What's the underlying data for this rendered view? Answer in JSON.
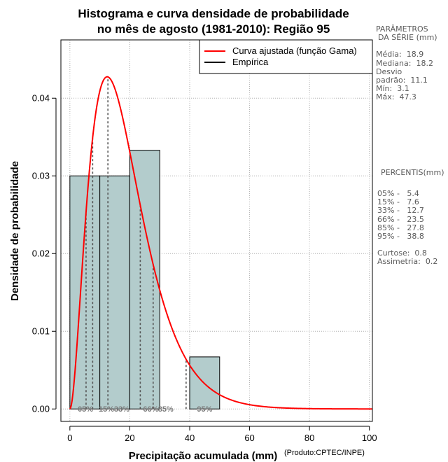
{
  "chart_data": {
    "type": "bar",
    "title_line1": "Histograma e curva densidade de probabilidade",
    "title_line2": "no mês de agosto (1981-2010): Região 95",
    "xlabel": "Precipitação acumulada (mm)",
    "ylabel": "Densidade de probabilidade",
    "credit": "(Produto:CPTEC/INPE)",
    "xlim": [
      -3,
      101
    ],
    "ylim": [
      -0.0016,
      0.0475
    ],
    "xticks": [
      0,
      20,
      40,
      60,
      80,
      100
    ],
    "xtick_labels": [
      "0",
      "20",
      "40",
      "60",
      "80",
      "100"
    ],
    "yticks": [
      0.0,
      0.01,
      0.02,
      0.03,
      0.04
    ],
    "ytick_labels": [
      "0.00",
      "0.01",
      "0.02",
      "0.03",
      "0.04"
    ],
    "grid": true,
    "histogram": {
      "bin_edges": [
        0,
        10,
        20,
        30,
        40,
        50
      ],
      "values": [
        0.03,
        0.03,
        0.0333,
        0.0,
        0.0067
      ],
      "color": "#b3cccc"
    },
    "gamma_fit": {
      "shape": 2.94,
      "scale": 6.42,
      "x_max": 101,
      "color": "#ff0000"
    },
    "percentile_lines": [
      {
        "label": "05%",
        "x": 5.4
      },
      {
        "label": "15%",
        "x": 7.6
      },
      {
        "label": "33%",
        "x": 12.7
      },
      {
        "label": "66%",
        "x": 23.5
      },
      {
        "label": "85%",
        "x": 27.8
      },
      {
        "label": "95%",
        "x": 38.8
      }
    ],
    "percentile_label_positions": [
      {
        "label": "05%",
        "x": 5.2
      },
      {
        "label": "15%",
        "x": 12.2
      },
      {
        "label": "33%",
        "x": 17.3
      },
      {
        "label": "66%",
        "x": 27.0
      },
      {
        "label": "85%",
        "x": 32.0
      },
      {
        "label": "95%",
        "x": 45.0
      }
    ],
    "legend": {
      "position": "top-right",
      "items": [
        {
          "label": "Curva ajustada (função Gama)",
          "color": "#ff0000"
        },
        {
          "label": "Empírica",
          "color": "#000000"
        }
      ]
    }
  },
  "side_panel": {
    "params_title_1": "PARÂMETROS",
    "params_title_2": "DA SÉRIE (mm)",
    "media": "Média:  18.9",
    "mediana": "Mediana:  18.2",
    "desvio_1": "Desvio",
    "desvio_2": "padrão:  11.1",
    "min": "Mín:  3.1",
    "max": "Máx:  47.3",
    "percentis_title": "PERCENTIS(mm)",
    "p05": "05% -   5.4",
    "p15": "15% -   7.6",
    "p33": "33% -   12.7",
    "p66": "66% -   23.5",
    "p85": "85% -   27.8",
    "p95": "95% -   38.8",
    "curtose": "Curtose:  0.8",
    "assimetria": "Assimetria:  0.2"
  }
}
